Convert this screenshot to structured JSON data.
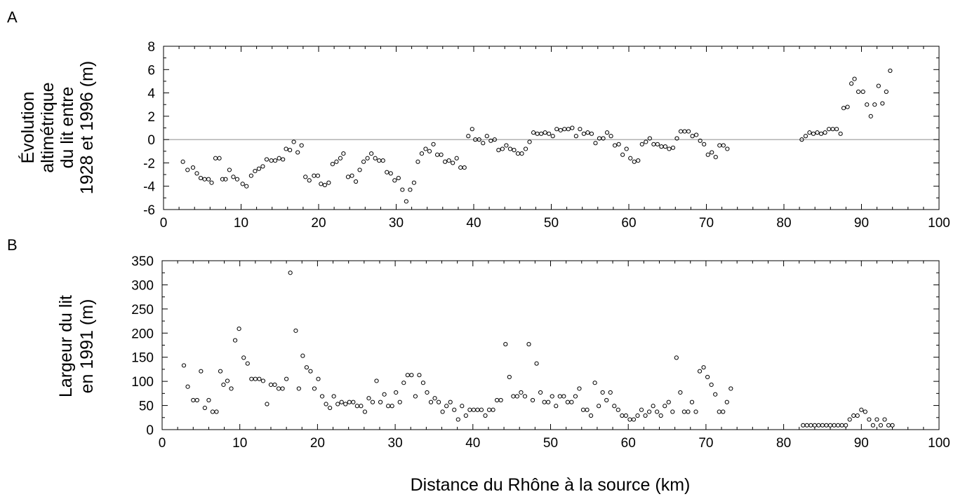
{
  "chart_data": [
    {
      "type": "scatter",
      "panel_label": "A",
      "ylabel_lines": [
        "Évolution",
        "altimétrique",
        "du lit entre",
        "1928 et 1996 (m)"
      ],
      "xlim": [
        0,
        100
      ],
      "ylim": [
        -6,
        8
      ],
      "xticks": [
        0,
        10,
        20,
        30,
        40,
        50,
        60,
        70,
        80,
        90,
        100
      ],
      "yticks": [
        -6,
        -4,
        -2,
        0,
        2,
        4,
        6,
        8
      ],
      "reference_line_y": 0,
      "grid": false,
      "points": [
        [
          2.5,
          -1.9
        ],
        [
          3.1,
          -2.6
        ],
        [
          3.8,
          -2.4
        ],
        [
          4.3,
          -2.9
        ],
        [
          4.8,
          -3.3
        ],
        [
          5.3,
          -3.4
        ],
        [
          5.8,
          -3.4
        ],
        [
          6.2,
          -3.7
        ],
        [
          6.7,
          -1.6
        ],
        [
          7.2,
          -1.6
        ],
        [
          7.6,
          -3.4
        ],
        [
          8.0,
          -3.4
        ],
        [
          8.5,
          -2.6
        ],
        [
          9.0,
          -3.2
        ],
        [
          9.5,
          -3.4
        ],
        [
          10.2,
          -3.8
        ],
        [
          10.7,
          -4.0
        ],
        [
          11.3,
          -3.1
        ],
        [
          11.8,
          -2.7
        ],
        [
          12.3,
          -2.5
        ],
        [
          12.8,
          -2.3
        ],
        [
          13.3,
          -1.7
        ],
        [
          13.9,
          -1.8
        ],
        [
          14.4,
          -1.8
        ],
        [
          14.9,
          -1.6
        ],
        [
          15.4,
          -1.7
        ],
        [
          15.8,
          -0.8
        ],
        [
          16.3,
          -0.9
        ],
        [
          16.8,
          -0.2
        ],
        [
          17.3,
          -1.1
        ],
        [
          17.8,
          -0.5
        ],
        [
          18.3,
          -3.2
        ],
        [
          18.8,
          -3.5
        ],
        [
          19.4,
          -3.1
        ],
        [
          19.9,
          -3.1
        ],
        [
          20.3,
          -3.8
        ],
        [
          20.8,
          -3.9
        ],
        [
          21.3,
          -3.7
        ],
        [
          21.8,
          -2.1
        ],
        [
          22.3,
          -1.9
        ],
        [
          22.8,
          -1.6
        ],
        [
          23.2,
          -1.2
        ],
        [
          23.8,
          -3.2
        ],
        [
          24.3,
          -3.1
        ],
        [
          24.8,
          -3.6
        ],
        [
          25.3,
          -2.6
        ],
        [
          25.8,
          -1.9
        ],
        [
          26.3,
          -1.6
        ],
        [
          26.8,
          -1.2
        ],
        [
          27.3,
          -1.6
        ],
        [
          27.8,
          -1.8
        ],
        [
          28.3,
          -1.8
        ],
        [
          28.8,
          -2.8
        ],
        [
          29.3,
          -2.9
        ],
        [
          29.8,
          -3.5
        ],
        [
          30.3,
          -3.3
        ],
        [
          30.8,
          -4.3
        ],
        [
          31.3,
          -5.3
        ],
        [
          31.8,
          -4.3
        ],
        [
          32.3,
          -3.7
        ],
        [
          32.8,
          -1.9
        ],
        [
          33.3,
          -1.2
        ],
        [
          33.8,
          -0.8
        ],
        [
          34.3,
          -1.0
        ],
        [
          34.8,
          -0.4
        ],
        [
          35.3,
          -1.3
        ],
        [
          35.8,
          -1.3
        ],
        [
          36.3,
          -1.9
        ],
        [
          36.8,
          -1.8
        ],
        [
          37.3,
          -2.0
        ],
        [
          37.8,
          -1.6
        ],
        [
          38.3,
          -2.4
        ],
        [
          38.8,
          -2.4
        ],
        [
          39.3,
          0.3
        ],
        [
          39.8,
          0.9
        ],
        [
          40.2,
          0.0
        ],
        [
          40.7,
          0.0
        ],
        [
          41.2,
          -0.3
        ],
        [
          41.7,
          0.3
        ],
        [
          42.2,
          -0.1
        ],
        [
          42.7,
          0.0
        ],
        [
          43.2,
          -0.9
        ],
        [
          43.7,
          -0.8
        ],
        [
          44.2,
          -0.5
        ],
        [
          44.7,
          -0.8
        ],
        [
          45.2,
          -0.9
        ],
        [
          45.7,
          -1.2
        ],
        [
          46.2,
          -1.2
        ],
        [
          46.7,
          -0.8
        ],
        [
          47.2,
          -0.2
        ],
        [
          47.7,
          0.6
        ],
        [
          48.2,
          0.5
        ],
        [
          48.7,
          0.5
        ],
        [
          49.2,
          0.6
        ],
        [
          49.7,
          0.5
        ],
        [
          50.2,
          0.3
        ],
        [
          50.7,
          0.9
        ],
        [
          51.2,
          0.8
        ],
        [
          51.7,
          0.9
        ],
        [
          52.2,
          0.9
        ],
        [
          52.7,
          1.0
        ],
        [
          53.2,
          0.3
        ],
        [
          53.7,
          0.9
        ],
        [
          54.2,
          0.5
        ],
        [
          54.7,
          0.6
        ],
        [
          55.2,
          0.5
        ],
        [
          55.7,
          -0.3
        ],
        [
          56.2,
          0.1
        ],
        [
          56.7,
          0.1
        ],
        [
          57.2,
          0.6
        ],
        [
          57.7,
          0.3
        ],
        [
          58.2,
          -0.5
        ],
        [
          58.7,
          -0.4
        ],
        [
          59.2,
          -1.3
        ],
        [
          59.7,
          -0.8
        ],
        [
          60.2,
          -1.6
        ],
        [
          60.7,
          -1.9
        ],
        [
          61.2,
          -1.8
        ],
        [
          61.7,
          -0.4
        ],
        [
          62.2,
          -0.2
        ],
        [
          62.7,
          0.1
        ],
        [
          63.2,
          -0.4
        ],
        [
          63.7,
          -0.4
        ],
        [
          64.2,
          -0.6
        ],
        [
          64.7,
          -0.6
        ],
        [
          65.2,
          -0.8
        ],
        [
          65.7,
          -0.7
        ],
        [
          66.2,
          0.1
        ],
        [
          66.7,
          0.7
        ],
        [
          67.2,
          0.7
        ],
        [
          67.7,
          0.7
        ],
        [
          68.2,
          0.3
        ],
        [
          68.7,
          0.4
        ],
        [
          69.2,
          -0.1
        ],
        [
          69.7,
          -0.4
        ],
        [
          70.2,
          -1.3
        ],
        [
          70.7,
          -1.1
        ],
        [
          71.2,
          -1.5
        ],
        [
          71.7,
          -0.5
        ],
        [
          72.2,
          -0.5
        ],
        [
          72.7,
          -0.8
        ],
        [
          82.3,
          0.0
        ],
        [
          82.8,
          0.3
        ],
        [
          83.3,
          0.6
        ],
        [
          83.8,
          0.5
        ],
        [
          84.3,
          0.6
        ],
        [
          84.8,
          0.5
        ],
        [
          85.3,
          0.6
        ],
        [
          85.8,
          0.9
        ],
        [
          86.3,
          0.9
        ],
        [
          86.8,
          0.9
        ],
        [
          87.3,
          0.5
        ],
        [
          87.7,
          2.7
        ],
        [
          88.2,
          2.8
        ],
        [
          88.7,
          4.8
        ],
        [
          89.1,
          5.2
        ],
        [
          89.6,
          4.1
        ],
        [
          90.2,
          4.1
        ],
        [
          90.7,
          3.0
        ],
        [
          91.2,
          2.0
        ],
        [
          91.7,
          3.0
        ],
        [
          92.2,
          4.6
        ],
        [
          92.7,
          3.1
        ],
        [
          93.2,
          4.1
        ],
        [
          93.7,
          5.9
        ]
      ]
    },
    {
      "type": "scatter",
      "panel_label": "B",
      "ylabel_lines": [
        "Largeur du lit",
        "en 1991 (m)"
      ],
      "xlabel": "Distance du Rhône à la source (km)",
      "xlim": [
        0,
        100
      ],
      "ylim": [
        0,
        350
      ],
      "xticks": [
        0,
        10,
        20,
        30,
        40,
        50,
        60,
        70,
        80,
        90,
        100
      ],
      "yticks": [
        0,
        50,
        100,
        150,
        200,
        250,
        300,
        350
      ],
      "grid": false,
      "points": [
        [
          2.8,
          133
        ],
        [
          3.3,
          89
        ],
        [
          4.0,
          61
        ],
        [
          4.5,
          61
        ],
        [
          5.0,
          121
        ],
        [
          5.5,
          45
        ],
        [
          6.0,
          61
        ],
        [
          6.5,
          37
        ],
        [
          7.0,
          37
        ],
        [
          7.5,
          121
        ],
        [
          7.9,
          93
        ],
        [
          8.4,
          101
        ],
        [
          8.9,
          85
        ],
        [
          9.4,
          185
        ],
        [
          9.9,
          209
        ],
        [
          10.5,
          149
        ],
        [
          11.0,
          137
        ],
        [
          11.5,
          105
        ],
        [
          12.0,
          105
        ],
        [
          12.5,
          105
        ],
        [
          13.0,
          101
        ],
        [
          13.5,
          53
        ],
        [
          14.0,
          93
        ],
        [
          14.5,
          93
        ],
        [
          15.0,
          85
        ],
        [
          15.5,
          85
        ],
        [
          16.0,
          105
        ],
        [
          16.5,
          325
        ],
        [
          17.2,
          205
        ],
        [
          17.6,
          85
        ],
        [
          18.1,
          153
        ],
        [
          18.6,
          129
        ],
        [
          19.1,
          121
        ],
        [
          19.6,
          85
        ],
        [
          20.1,
          105
        ],
        [
          20.6,
          69
        ],
        [
          21.1,
          53
        ],
        [
          21.6,
          45
        ],
        [
          22.1,
          69
        ],
        [
          22.6,
          53
        ],
        [
          23.1,
          57
        ],
        [
          23.6,
          53
        ],
        [
          24.1,
          57
        ],
        [
          24.6,
          57
        ],
        [
          25.1,
          49
        ],
        [
          25.6,
          49
        ],
        [
          26.1,
          37
        ],
        [
          26.6,
          65
        ],
        [
          27.1,
          57
        ],
        [
          27.6,
          101
        ],
        [
          28.1,
          57
        ],
        [
          28.6,
          73
        ],
        [
          29.1,
          49
        ],
        [
          29.6,
          49
        ],
        [
          30.1,
          77
        ],
        [
          30.6,
          57
        ],
        [
          31.1,
          97
        ],
        [
          31.6,
          113
        ],
        [
          32.1,
          113
        ],
        [
          32.6,
          69
        ],
        [
          33.1,
          113
        ],
        [
          33.6,
          97
        ],
        [
          34.1,
          77
        ],
        [
          34.6,
          57
        ],
        [
          35.1,
          65
        ],
        [
          35.6,
          57
        ],
        [
          36.1,
          37
        ],
        [
          36.6,
          49
        ],
        [
          37.1,
          57
        ],
        [
          37.6,
          41
        ],
        [
          38.1,
          21
        ],
        [
          38.6,
          49
        ],
        [
          39.1,
          29
        ],
        [
          39.6,
          41
        ],
        [
          40.1,
          41
        ],
        [
          40.6,
          41
        ],
        [
          41.1,
          41
        ],
        [
          41.6,
          29
        ],
        [
          42.1,
          41
        ],
        [
          42.6,
          41
        ],
        [
          43.1,
          61
        ],
        [
          43.6,
          61
        ],
        [
          44.2,
          177
        ],
        [
          44.7,
          109
        ],
        [
          45.2,
          69
        ],
        [
          45.7,
          69
        ],
        [
          46.2,
          77
        ],
        [
          46.7,
          69
        ],
        [
          47.2,
          177
        ],
        [
          47.7,
          61
        ],
        [
          48.2,
          137
        ],
        [
          48.7,
          77
        ],
        [
          49.2,
          57
        ],
        [
          49.7,
          57
        ],
        [
          50.2,
          69
        ],
        [
          50.7,
          49
        ],
        [
          51.2,
          69
        ],
        [
          51.7,
          69
        ],
        [
          52.2,
          57
        ],
        [
          52.7,
          57
        ],
        [
          53.2,
          69
        ],
        [
          53.7,
          85
        ],
        [
          54.2,
          41
        ],
        [
          54.7,
          41
        ],
        [
          55.2,
          29
        ],
        [
          55.7,
          97
        ],
        [
          56.2,
          49
        ],
        [
          56.7,
          77
        ],
        [
          57.2,
          61
        ],
        [
          57.7,
          77
        ],
        [
          58.2,
          49
        ],
        [
          58.7,
          41
        ],
        [
          59.2,
          29
        ],
        [
          59.7,
          29
        ],
        [
          60.2,
          21
        ],
        [
          60.7,
          21
        ],
        [
          61.2,
          29
        ],
        [
          61.7,
          41
        ],
        [
          62.2,
          29
        ],
        [
          62.7,
          37
        ],
        [
          63.2,
          49
        ],
        [
          63.7,
          37
        ],
        [
          64.2,
          29
        ],
        [
          64.7,
          49
        ],
        [
          65.2,
          57
        ],
        [
          65.7,
          37
        ],
        [
          66.2,
          149
        ],
        [
          66.7,
          77
        ],
        [
          67.2,
          37
        ],
        [
          67.7,
          37
        ],
        [
          68.2,
          57
        ],
        [
          68.7,
          37
        ],
        [
          69.2,
          121
        ],
        [
          69.7,
          129
        ],
        [
          70.2,
          109
        ],
        [
          70.7,
          93
        ],
        [
          71.2,
          73
        ],
        [
          71.7,
          37
        ],
        [
          72.2,
          37
        ],
        [
          72.7,
          57
        ],
        [
          73.2,
          85
        ],
        [
          82.5,
          9
        ],
        [
          83.0,
          9
        ],
        [
          83.5,
          9
        ],
        [
          84.0,
          9
        ],
        [
          84.5,
          9
        ],
        [
          85.0,
          9
        ],
        [
          85.5,
          9
        ],
        [
          86.0,
          9
        ],
        [
          86.5,
          9
        ],
        [
          87.0,
          9
        ],
        [
          87.5,
          9
        ],
        [
          88.0,
          9
        ],
        [
          88.5,
          21
        ],
        [
          89.0,
          29
        ],
        [
          89.5,
          29
        ],
        [
          90.0,
          41
        ],
        [
          90.5,
          37
        ],
        [
          91.0,
          21
        ],
        [
          91.5,
          9
        ],
        [
          92.0,
          21
        ],
        [
          92.5,
          9
        ],
        [
          93.0,
          21
        ],
        [
          93.5,
          9
        ],
        [
          94.0,
          9
        ]
      ]
    }
  ]
}
